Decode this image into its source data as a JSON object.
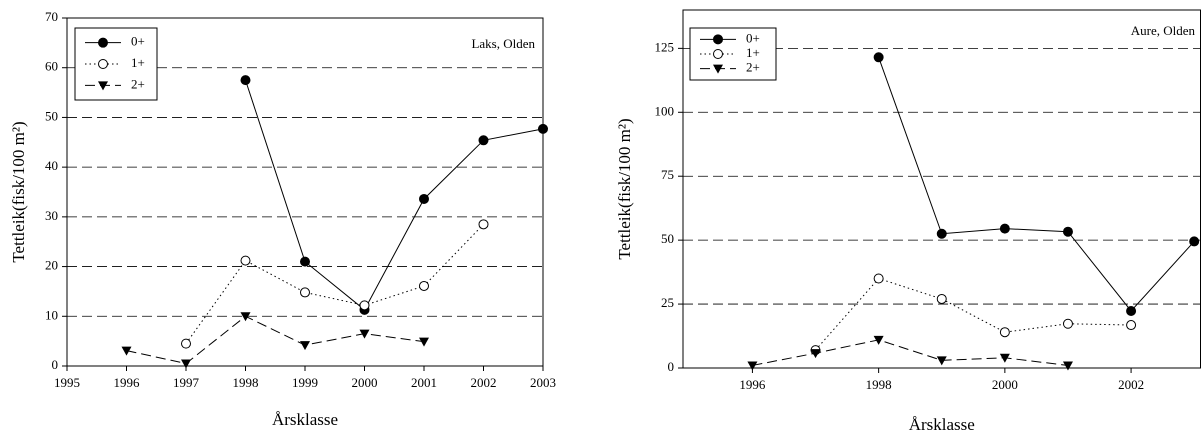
{
  "chart_data": [
    {
      "type": "line",
      "annotation": "Laks, Olden",
      "ylabel": "Tettleik(fisk/100 m²)",
      "xlabel": "Årsklasse",
      "xlim": [
        1995,
        2003
      ],
      "xticks": [
        1995,
        1996,
        1997,
        1998,
        1999,
        2000,
        2001,
        2002,
        2003
      ],
      "ylim": [
        0,
        70
      ],
      "yticks": [
        0,
        10,
        20,
        30,
        40,
        50,
        60,
        70
      ],
      "grid": true,
      "legend": "upper left",
      "series": [
        {
          "name": "0+",
          "color": "#000",
          "marker": "circle",
          "style": "solid",
          "x": [
            1998,
            1999,
            2000,
            2001,
            2002,
            2003
          ],
          "values": [
            57.5,
            21,
            11.3,
            33.6,
            45.4,
            47.7
          ]
        },
        {
          "name": "1+",
          "color": "#000",
          "marker": "open-circle",
          "style": "dotted",
          "x": [
            1997,
            1998,
            1999,
            2000,
            2001,
            2002
          ],
          "values": [
            4.5,
            21.2,
            14.8,
            12.2,
            16.1,
            28.5
          ]
        },
        {
          "name": "2+",
          "color": "#000",
          "marker": "triangle-down",
          "style": "dashed",
          "x": [
            1996,
            1997,
            1998,
            1999,
            2000,
            2001
          ],
          "values": [
            3.1,
            0.5,
            10,
            4.2,
            6.5,
            4.9
          ]
        }
      ]
    },
    {
      "type": "line",
      "annotation": "Aure, Olden",
      "ylabel": "Tettleik(fisk/100 m²)",
      "xlabel": "Årsklasse",
      "xlim": [
        1994.9,
        2003.1
      ],
      "xticks": [
        1996,
        1998,
        2000,
        2002
      ],
      "ylim": [
        0,
        140
      ],
      "yticks": [
        0,
        25,
        50,
        75,
        100,
        125
      ],
      "grid": true,
      "legend": "upper left",
      "series": [
        {
          "name": "0+",
          "color": "#000",
          "marker": "circle",
          "style": "solid",
          "x": [
            1998,
            1999,
            2000,
            2001,
            2002,
            2003
          ],
          "values": [
            121.5,
            52.5,
            54.5,
            53.3,
            22.3,
            49.5
          ]
        },
        {
          "name": "1+",
          "color": "#000",
          "marker": "open-circle",
          "style": "dotted",
          "x": [
            1997,
            1998,
            1999,
            2000,
            2001,
            2002
          ],
          "values": [
            7,
            35,
            27,
            14,
            17.3,
            16.8
          ]
        },
        {
          "name": "2+",
          "color": "#000",
          "marker": "triangle-down",
          "style": "dashed",
          "x": [
            1996,
            1997,
            1998,
            1999,
            2000,
            2001
          ],
          "values": [
            1,
            5.8,
            11,
            3,
            4,
            1
          ]
        }
      ]
    }
  ]
}
